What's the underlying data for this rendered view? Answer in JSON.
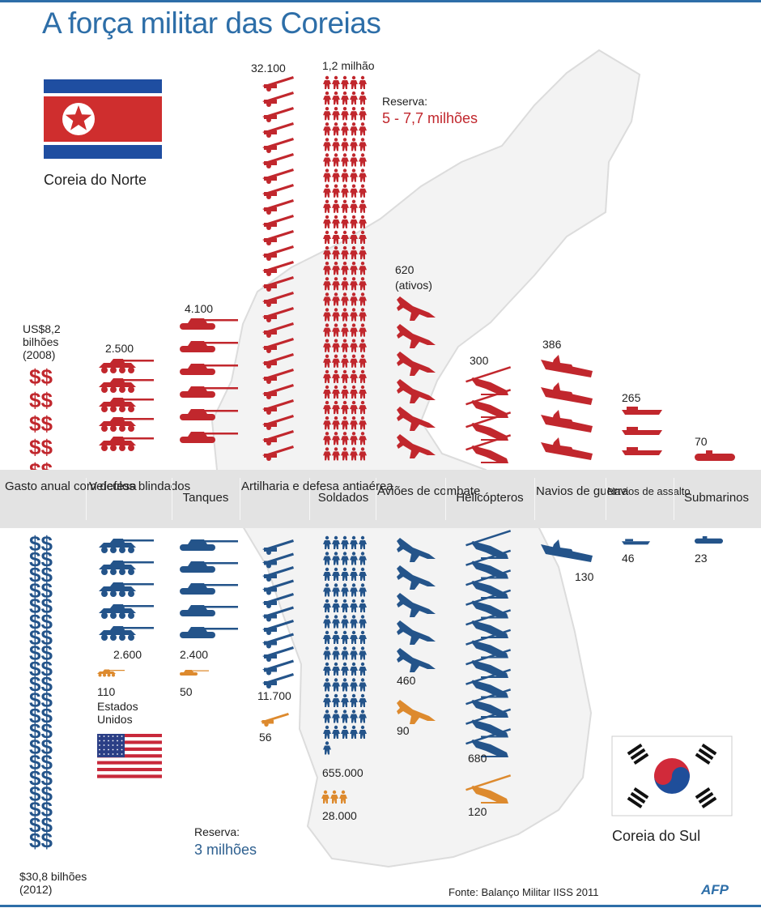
{
  "title": "A força militar das Coreias",
  "north": {
    "name": "Coreia do Norte"
  },
  "south": {
    "name": "Coreia do Sul"
  },
  "us_label": "Estados Unidos",
  "source": "Fonte: Balanço Militar IISS 2011",
  "logo": "AFP",
  "colors": {
    "north": "#c1272d",
    "south": "#24548a",
    "us": "#dd8a2e",
    "band": "#e3e3e3"
  },
  "chart_data": {
    "type": "table",
    "categories": [
      "Gasto anual com defesa",
      "Veículos blindados",
      "Tanques",
      "Artilharia e defesa antiaérea",
      "Soldados",
      "Aviões de combate",
      "Helicópteros",
      "Navios de guerra",
      "Navios de assalto",
      "Submarinos"
    ],
    "north": {
      "spending_label": "US$8,2 bilhões (2008)",
      "armored_vehicles": "2.500",
      "tanks": "4.100",
      "artillery": "32.100",
      "soldiers": "1,2 milhão",
      "reserve_title": "Reserva:",
      "reserve_value": "5 - 7,7 milhões",
      "combat_aircraft": "620",
      "combat_aircraft_note": "(ativos)",
      "helicopters": "300",
      "warships": "386",
      "assault_ships": "265",
      "submarines": "70"
    },
    "south": {
      "spending_label": "$30,8 bilhões (2012)",
      "armored_vehicles": "2.600",
      "tanks": "2.400",
      "artillery": "11.700",
      "soldiers": "655.000",
      "reserve_title": "Reserva:",
      "reserve_value": "3 milhões",
      "combat_aircraft": "460",
      "helicopters": "680",
      "warships": "130",
      "assault_ships": "46",
      "submarines": "23"
    },
    "us_forces": {
      "armored_vehicles": "110",
      "tanks": "50",
      "artillery": "56",
      "soldiers": "28.000",
      "combat_aircraft": "90",
      "helicopters": "120"
    },
    "icon_counts": {
      "north": {
        "dollars": 5,
        "armored": 5,
        "tanks": 6,
        "artillery": 25,
        "soldier_rows": 25,
        "aircraft": 6,
        "helicopters": 4,
        "warships": 4,
        "assault": 3,
        "submarines": 1
      },
      "south": {
        "dollars": 20,
        "armored": 5,
        "tanks": 5,
        "artillery": 11,
        "soldier_rows": 14,
        "aircraft": 5,
        "helicopters": 11,
        "warships": 1,
        "assault": 1,
        "submarines": 1
      },
      "us": {
        "armored": 1,
        "tanks": 1,
        "artillery": 1,
        "soldiers": 3,
        "aircraft": 1,
        "helicopters": 1
      }
    }
  }
}
